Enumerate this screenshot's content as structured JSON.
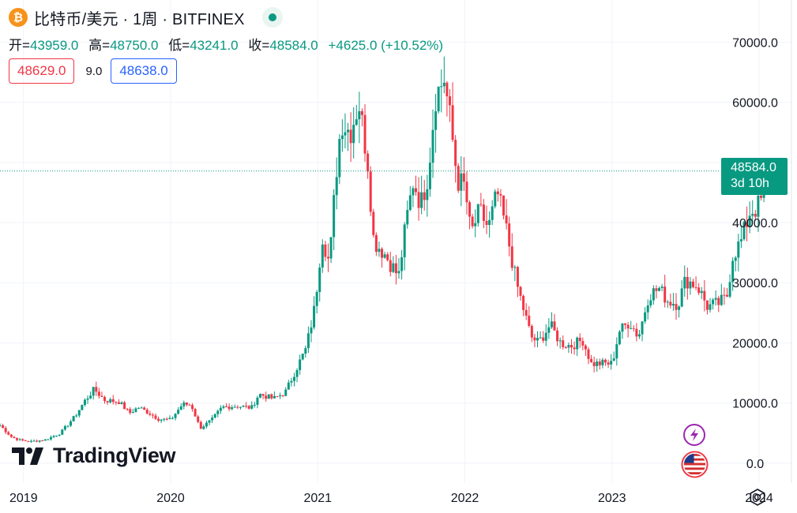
{
  "header": {
    "coin_symbol": "₿",
    "title": "比特币/美元 · 1周 · BITFINEX"
  },
  "ohlc": {
    "open_label": "开=",
    "open": "43959.0",
    "high_label": "高=",
    "high": "48750.0",
    "low_label": "低=",
    "low": "43241.0",
    "close_label": "收=",
    "close": "48584.0",
    "change": "+4625.0 (+10.52%)"
  },
  "quote": {
    "sell": "48629.0",
    "spread": "9.0",
    "buy": "48638.0"
  },
  "last_price": {
    "value": "48584.0",
    "countdown": "3d 10h"
  },
  "logo": {
    "text": "TradingView"
  },
  "icons": {
    "coin": "bitcoin-icon",
    "status": "market-open-dot-icon",
    "bolt": "lightning-icon",
    "flag": "us-flag-icon",
    "settings": "settings-gear-icon"
  },
  "colors": {
    "up": "#089981",
    "down": "#f23645",
    "grid": "#f0f3fa",
    "text": "#131722",
    "buy": "#2962ff"
  },
  "chart_data": {
    "type": "candlestick",
    "y_ticks": [
      "70000.0",
      "60000.0",
      "50000.0",
      "40000.0",
      "30000.0",
      "20000.0",
      "10000.0",
      "0.0"
    ],
    "y_tick_values": [
      70000,
      60000,
      50000,
      40000,
      30000,
      20000,
      10000,
      0
    ],
    "ylim": [
      -3300,
      77000
    ],
    "x_ticks": [
      "2019",
      "2020",
      "2021",
      "2022",
      "2023",
      "2024"
    ],
    "x_tick_values": [
      2019.0,
      2020.0,
      2021.0,
      2022.0,
      2023.0,
      2024.0
    ],
    "xlim": [
      2018.84,
      2024.22
    ],
    "last_close": 48584,
    "grid": true,
    "interval": "1W",
    "anchors": [
      [
        2018.84,
        6300
      ],
      [
        2018.92,
        4300
      ],
      [
        2018.98,
        3800
      ],
      [
        2019.05,
        3600
      ],
      [
        2019.15,
        3900
      ],
      [
        2019.25,
        5000
      ],
      [
        2019.35,
        7800
      ],
      [
        2019.42,
        10500
      ],
      [
        2019.48,
        12300
      ],
      [
        2019.55,
        10500
      ],
      [
        2019.65,
        10200
      ],
      [
        2019.72,
        8300
      ],
      [
        2019.78,
        9300
      ],
      [
        2019.85,
        8400
      ],
      [
        2019.92,
        7300
      ],
      [
        2020.0,
        7200
      ],
      [
        2020.08,
        9800
      ],
      [
        2020.14,
        9700
      ],
      [
        2020.2,
        5800
      ],
      [
        2020.28,
        7200
      ],
      [
        2020.35,
        9300
      ],
      [
        2020.45,
        9500
      ],
      [
        2020.55,
        9200
      ],
      [
        2020.6,
        11500
      ],
      [
        2020.7,
        10700
      ],
      [
        2020.78,
        11800
      ],
      [
        2020.85,
        15500
      ],
      [
        2020.92,
        19000
      ],
      [
        2020.98,
        26000
      ],
      [
        2021.03,
        38000
      ],
      [
        2021.08,
        33000
      ],
      [
        2021.12,
        47000
      ],
      [
        2021.16,
        57000
      ],
      [
        2021.22,
        55000
      ],
      [
        2021.28,
        60000
      ],
      [
        2021.34,
        50000
      ],
      [
        2021.38,
        37000
      ],
      [
        2021.45,
        35000
      ],
      [
        2021.5,
        33000
      ],
      [
        2021.55,
        31000
      ],
      [
        2021.6,
        40000
      ],
      [
        2021.65,
        47000
      ],
      [
        2021.7,
        43000
      ],
      [
        2021.75,
        48000
      ],
      [
        2021.8,
        61000
      ],
      [
        2021.86,
        64000
      ],
      [
        2021.9,
        57000
      ],
      [
        2021.95,
        47000
      ],
      [
        2022.0,
        46000
      ],
      [
        2022.04,
        38000
      ],
      [
        2022.1,
        42000
      ],
      [
        2022.16,
        39000
      ],
      [
        2022.22,
        45000
      ],
      [
        2022.28,
        39000
      ],
      [
        2022.35,
        30000
      ],
      [
        2022.45,
        21000
      ],
      [
        2022.5,
        20000
      ],
      [
        2022.58,
        23000
      ],
      [
        2022.65,
        20000
      ],
      [
        2022.72,
        19500
      ],
      [
        2022.8,
        20500
      ],
      [
        2022.86,
        16500
      ],
      [
        2022.95,
        16600
      ],
      [
        2023.0,
        16500
      ],
      [
        2023.05,
        22000
      ],
      [
        2023.12,
        23500
      ],
      [
        2023.18,
        21000
      ],
      [
        2023.25,
        28000
      ],
      [
        2023.32,
        29000
      ],
      [
        2023.38,
        27000
      ],
      [
        2023.45,
        26500
      ],
      [
        2023.5,
        30500
      ],
      [
        2023.58,
        29500
      ],
      [
        2023.65,
        26000
      ],
      [
        2023.72,
        26500
      ],
      [
        2023.78,
        27500
      ],
      [
        2023.82,
        34500
      ],
      [
        2023.88,
        37000
      ],
      [
        2023.94,
        42000
      ],
      [
        2023.98,
        42300
      ],
      [
        2024.02,
        43900
      ],
      [
        2024.035,
        48584
      ]
    ]
  }
}
